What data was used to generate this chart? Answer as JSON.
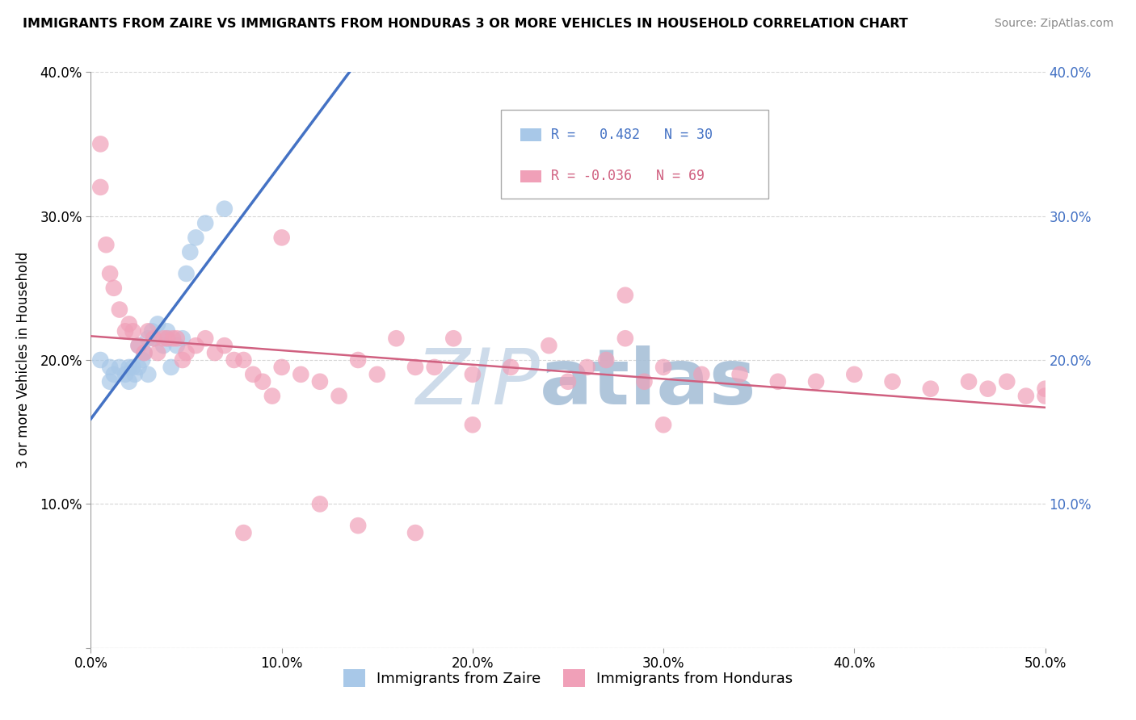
{
  "title": "IMMIGRANTS FROM ZAIRE VS IMMIGRANTS FROM HONDURAS 3 OR MORE VEHICLES IN HOUSEHOLD CORRELATION CHART",
  "source": "Source: ZipAtlas.com",
  "ylabel": "3 or more Vehicles in Household",
  "xlim": [
    0.0,
    0.5
  ],
  "ylim": [
    0.0,
    0.4
  ],
  "xticks": [
    0.0,
    0.1,
    0.2,
    0.3,
    0.4,
    0.5
  ],
  "yticks": [
    0.0,
    0.1,
    0.2,
    0.3,
    0.4
  ],
  "xtick_labels": [
    "0.0%",
    "10.0%",
    "20.0%",
    "30.0%",
    "40.0%",
    "50.0%"
  ],
  "ytick_labels_left": [
    "",
    "10.0%",
    "20.0%",
    "30.0%",
    "40.0%"
  ],
  "ytick_labels_right": [
    "",
    "10.0%",
    "20.0%",
    "30.0%",
    "40.0%"
  ],
  "zaire_color": "#a8c8e8",
  "honduras_color": "#f0a0b8",
  "zaire_line_color": "#4472c4",
  "honduras_line_color": "#d06080",
  "right_tick_color": "#4472c4",
  "watermark_zip_color": "#c8d8e8",
  "watermark_atlas_color": "#a8c0d8",
  "zaire_points_x": [
    0.005,
    0.01,
    0.01,
    0.012,
    0.015,
    0.018,
    0.02,
    0.02,
    0.022,
    0.023,
    0.025,
    0.025,
    0.027,
    0.028,
    0.03,
    0.03,
    0.032,
    0.033,
    0.035,
    0.038,
    0.04,
    0.04,
    0.042,
    0.045,
    0.048,
    0.05,
    0.052,
    0.055,
    0.06,
    0.07
  ],
  "zaire_points_y": [
    0.2,
    0.195,
    0.185,
    0.19,
    0.195,
    0.19,
    0.195,
    0.185,
    0.195,
    0.19,
    0.195,
    0.21,
    0.2,
    0.205,
    0.215,
    0.19,
    0.22,
    0.215,
    0.225,
    0.21,
    0.215,
    0.22,
    0.195,
    0.21,
    0.215,
    0.26,
    0.275,
    0.285,
    0.295,
    0.305
  ],
  "honduras_points_x": [
    0.005,
    0.005,
    0.008,
    0.01,
    0.012,
    0.015,
    0.018,
    0.02,
    0.022,
    0.025,
    0.028,
    0.03,
    0.033,
    0.035,
    0.038,
    0.04,
    0.043,
    0.045,
    0.048,
    0.05,
    0.055,
    0.06,
    0.065,
    0.07,
    0.075,
    0.08,
    0.085,
    0.09,
    0.095,
    0.1,
    0.11,
    0.12,
    0.13,
    0.14,
    0.15,
    0.16,
    0.17,
    0.18,
    0.19,
    0.2,
    0.22,
    0.24,
    0.25,
    0.26,
    0.27,
    0.28,
    0.29,
    0.3,
    0.32,
    0.34,
    0.36,
    0.38,
    0.4,
    0.42,
    0.44,
    0.46,
    0.47,
    0.48,
    0.49,
    0.5,
    0.5,
    0.28,
    0.3,
    0.1,
    0.12,
    0.14,
    0.17,
    0.2,
    0.08
  ],
  "honduras_points_y": [
    0.35,
    0.32,
    0.28,
    0.26,
    0.25,
    0.235,
    0.22,
    0.225,
    0.22,
    0.21,
    0.205,
    0.22,
    0.215,
    0.205,
    0.215,
    0.215,
    0.215,
    0.215,
    0.2,
    0.205,
    0.21,
    0.215,
    0.205,
    0.21,
    0.2,
    0.2,
    0.19,
    0.185,
    0.175,
    0.195,
    0.19,
    0.185,
    0.175,
    0.2,
    0.19,
    0.215,
    0.195,
    0.195,
    0.215,
    0.19,
    0.195,
    0.21,
    0.185,
    0.195,
    0.2,
    0.215,
    0.185,
    0.195,
    0.19,
    0.19,
    0.185,
    0.185,
    0.19,
    0.185,
    0.18,
    0.185,
    0.18,
    0.185,
    0.175,
    0.175,
    0.18,
    0.245,
    0.155,
    0.285,
    0.1,
    0.085,
    0.08,
    0.155,
    0.08
  ]
}
